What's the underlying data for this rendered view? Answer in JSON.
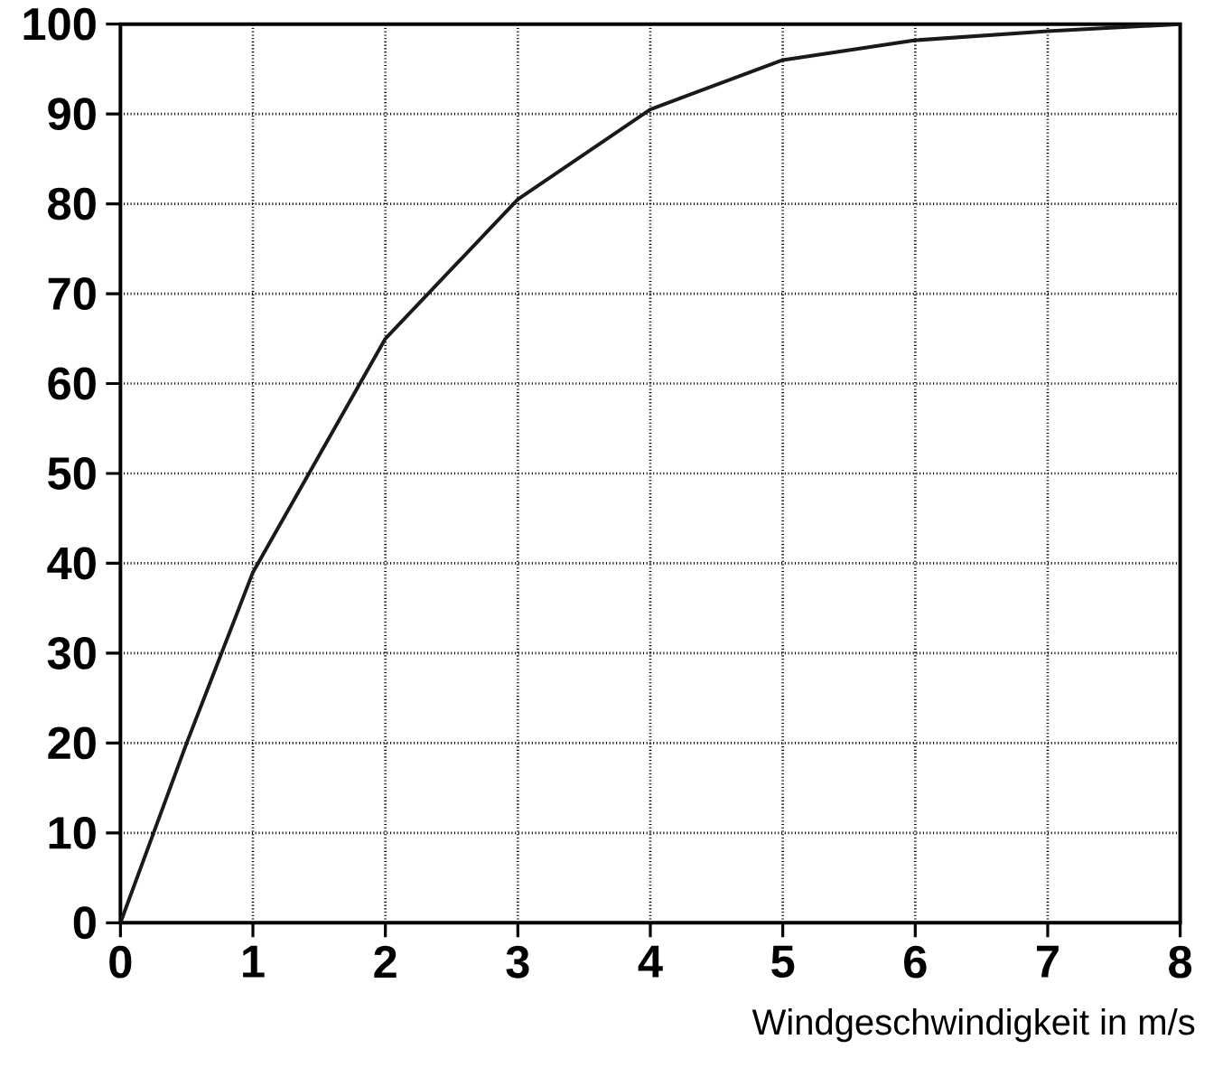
{
  "chart_data": {
    "type": "line",
    "xlabel": "Windgeschwindigkeit in m/s",
    "x": [
      0,
      0.5,
      1,
      2,
      3,
      4,
      5,
      6,
      7,
      8
    ],
    "series": [
      {
        "color": "#1a1a1a",
        "values": [
          0,
          20,
          39,
          65,
          80.5,
          90.5,
          96,
          98.2,
          99.2,
          100
        ]
      }
    ],
    "xlim": [
      0,
      8
    ],
    "ylim": [
      0,
      100
    ],
    "xticks": [
      0,
      1,
      2,
      3,
      4,
      5,
      6,
      7,
      8
    ],
    "yticks": [
      0,
      10,
      20,
      30,
      40,
      50,
      60,
      70,
      80,
      90,
      100
    ],
    "grid": true,
    "marker": "none",
    "line_style": "solid"
  }
}
